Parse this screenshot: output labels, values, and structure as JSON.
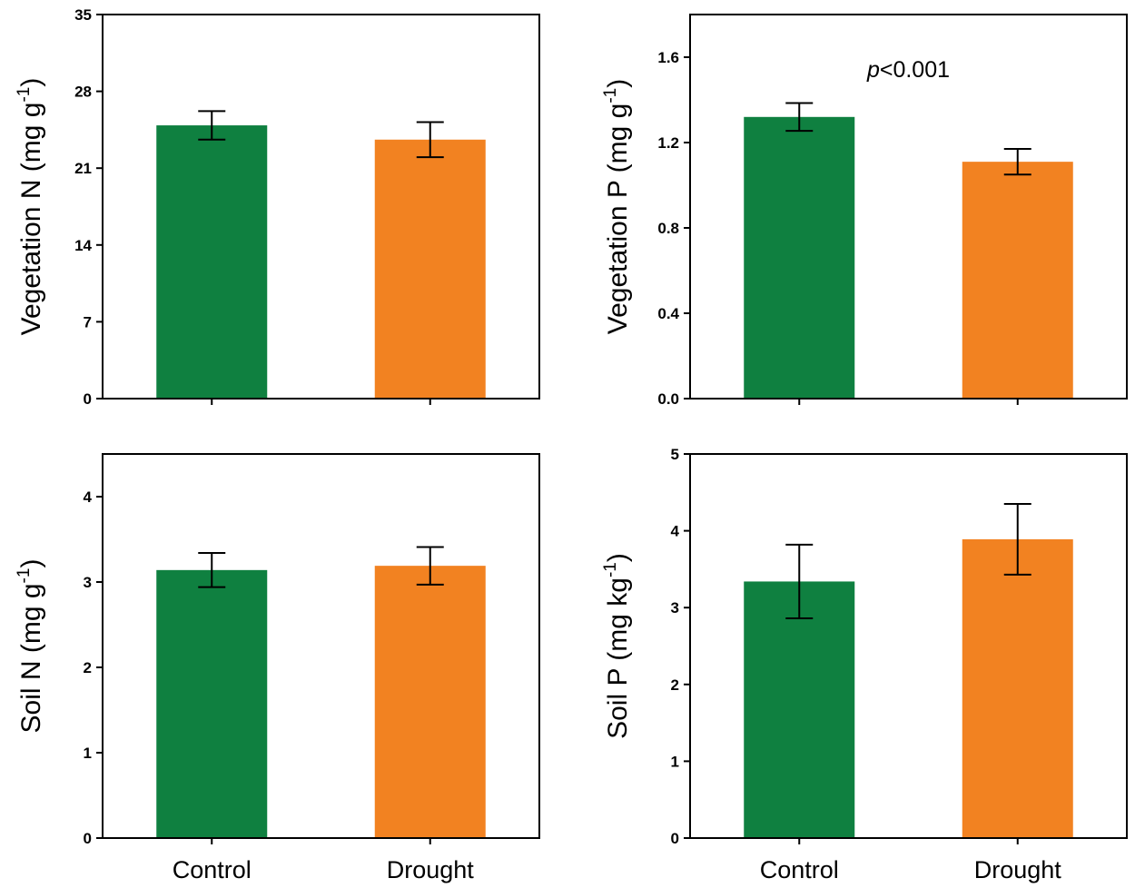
{
  "chart_data": [
    {
      "type": "bar",
      "panel": "top-left",
      "categories": [
        "Control",
        "Drought"
      ],
      "values": [
        24.9,
        23.6
      ],
      "errors": [
        1.3,
        1.6
      ],
      "ylim": [
        0,
        35
      ],
      "yticks": [
        "0",
        "7",
        "14",
        "21",
        "28",
        "35"
      ],
      "ylabel_main": "Vegetation N (mg g",
      "ylabel_sup": "-1",
      "ylabel_end": ")",
      "show_category_labels": false,
      "annotation": ""
    },
    {
      "type": "bar",
      "panel": "top-right",
      "categories": [
        "Control",
        "Drought"
      ],
      "values": [
        1.32,
        1.11
      ],
      "errors": [
        0.065,
        0.06
      ],
      "ylim": [
        0,
        1.8
      ],
      "yticks": [
        "0.0",
        "0.4",
        "0.8",
        "1.2",
        "1.6"
      ],
      "ylabel_main": "Vegetation P (mg g",
      "ylabel_sup": "-1",
      "ylabel_end": ")",
      "show_category_labels": false,
      "annotation_italic": "p",
      "annotation": "<0.001"
    },
    {
      "type": "bar",
      "panel": "bottom-left",
      "categories": [
        "Control",
        "Drought"
      ],
      "values": [
        3.14,
        3.19
      ],
      "errors": [
        0.2,
        0.22
      ],
      "ylim": [
        0,
        4.5
      ],
      "yticks": [
        "0",
        "1",
        "2",
        "3",
        "4"
      ],
      "ylabel_main": "Soil N (mg g",
      "ylabel_sup": "-1",
      "ylabel_end": ")",
      "show_category_labels": true,
      "annotation": ""
    },
    {
      "type": "bar",
      "panel": "bottom-right",
      "categories": [
        "Control",
        "Drought"
      ],
      "values": [
        3.34,
        3.89
      ],
      "errors": [
        0.48,
        0.46
      ],
      "ylim": [
        0,
        5
      ],
      "yticks": [
        "0",
        "1",
        "2",
        "3",
        "4",
        "5"
      ],
      "ylabel_main": "Soil P (mg kg",
      "ylabel_sup": "-1",
      "ylabel_end": ")",
      "show_category_labels": true,
      "annotation": ""
    }
  ],
  "colors": {
    "control": "#0f8040",
    "drought": "#f28221",
    "axis": "#000000"
  }
}
